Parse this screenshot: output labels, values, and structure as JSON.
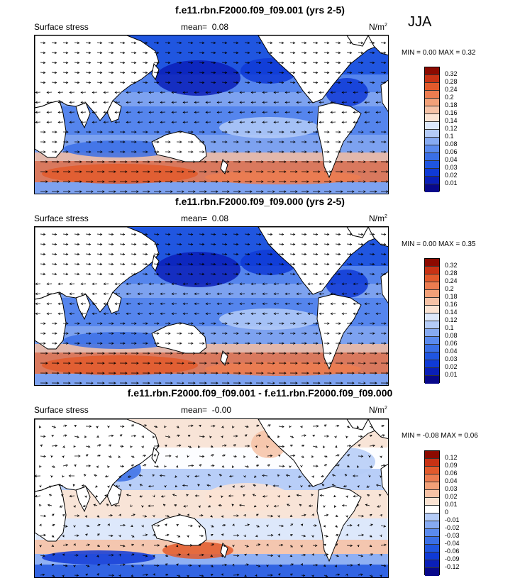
{
  "season": "JJA",
  "units": "N/m",
  "units_sup": "2",
  "panels": [
    {
      "title": "f.e11.rbn.F2000.f09_f09.001 (yrs 2-5)",
      "left_label": "Surface stress",
      "mean_label": "mean=",
      "mean_value": "0.08",
      "minmax": "MIN =  0.00 MAX =  0.32"
    },
    {
      "title": "f.e11.rbn.F2000.f09_f09.000 (yrs 2-5)",
      "left_label": "Surface stress",
      "mean_label": "mean=",
      "mean_value": "0.08",
      "minmax": "MIN =  0.00 MAX =  0.35"
    },
    {
      "title": "f.e11.rbn.F2000.f09_f09.001 - f.e11.rbn.F2000.f09_f09.000",
      "left_label": "Surface stress",
      "mean_label": "mean=",
      "mean_value": "-0.00",
      "minmax": "MIN = -0.08 MAX =  0.06"
    }
  ],
  "chart_data": [
    {
      "type": "heatmap",
      "title": "f.e11.rbn.F2000.f09_f09.001 (yrs 2-5)",
      "variable": "Surface stress",
      "min": 0.0,
      "max": 0.32,
      "mean": 0.08,
      "levels": [
        0.01,
        0.02,
        0.03,
        0.04,
        0.06,
        0.08,
        0.1,
        0.12,
        0.14,
        0.16,
        0.18,
        0.2,
        0.24,
        0.28,
        0.32
      ],
      "level_labels": [
        "0.01",
        "0.02",
        "0.03",
        "0.04",
        "0.06",
        "0.08",
        "0.1",
        "0.12",
        "0.14",
        "0.16",
        "0.18",
        "0.2",
        "0.24",
        "0.28",
        "0.32"
      ],
      "colors": [
        "#08088a",
        "#0a1fb8",
        "#0f3ad6",
        "#1f55e0",
        "#3a6fe6",
        "#5a8aee",
        "#86aaf2",
        "#b4cbf7",
        "#dde8fb",
        "#fbe3d3",
        "#f6c2a6",
        "#f2a078",
        "#ec7c50",
        "#e25a2c",
        "#c83214",
        "#8c0a00"
      ],
      "vectors": true
    },
    {
      "type": "heatmap",
      "title": "f.e11.rbn.F2000.f09_f09.000 (yrs 2-5)",
      "variable": "Surface stress",
      "min": 0.0,
      "max": 0.35,
      "mean": 0.08,
      "levels": [
        0.01,
        0.02,
        0.03,
        0.04,
        0.06,
        0.08,
        0.1,
        0.12,
        0.14,
        0.16,
        0.18,
        0.2,
        0.24,
        0.28,
        0.32
      ],
      "level_labels": [
        "0.01",
        "0.02",
        "0.03",
        "0.04",
        "0.06",
        "0.08",
        "0.1",
        "0.12",
        "0.14",
        "0.16",
        "0.18",
        "0.2",
        "0.24",
        "0.28",
        "0.32"
      ],
      "colors": [
        "#08088a",
        "#0a1fb8",
        "#0f3ad6",
        "#1f55e0",
        "#3a6fe6",
        "#5a8aee",
        "#86aaf2",
        "#b4cbf7",
        "#dde8fb",
        "#fbe3d3",
        "#f6c2a6",
        "#f2a078",
        "#ec7c50",
        "#e25a2c",
        "#c83214",
        "#8c0a00"
      ],
      "vectors": true
    },
    {
      "type": "heatmap",
      "title": "f.e11.rbn.F2000.f09_f09.001 - f.e11.rbn.F2000.f09_f09.000",
      "variable": "Surface stress",
      "min": -0.08,
      "max": 0.06,
      "mean": -0.0,
      "levels": [
        -0.12,
        -0.09,
        -0.06,
        -0.04,
        -0.03,
        -0.02,
        -0.01,
        0,
        0.01,
        0.02,
        0.03,
        0.04,
        0.06,
        0.09,
        0.12
      ],
      "level_labels": [
        "-0.12",
        "-0.09",
        "-0.06",
        "-0.04",
        "-0.03",
        "-0.02",
        "-0.01",
        "0",
        "0.01",
        "0.02",
        "0.03",
        "0.04",
        "0.06",
        "0.09",
        "0.12"
      ],
      "colors": [
        "#08088a",
        "#0a1fb8",
        "#0f3ad6",
        "#1f55e0",
        "#3a6fe6",
        "#5a8aee",
        "#86aaf2",
        "#b4cbf7",
        "#ffffff",
        "#fbe3d3",
        "#f6c2a6",
        "#f2a078",
        "#ec7c50",
        "#e25a2c",
        "#c83214",
        "#8c0a00"
      ],
      "vectors": true
    }
  ]
}
